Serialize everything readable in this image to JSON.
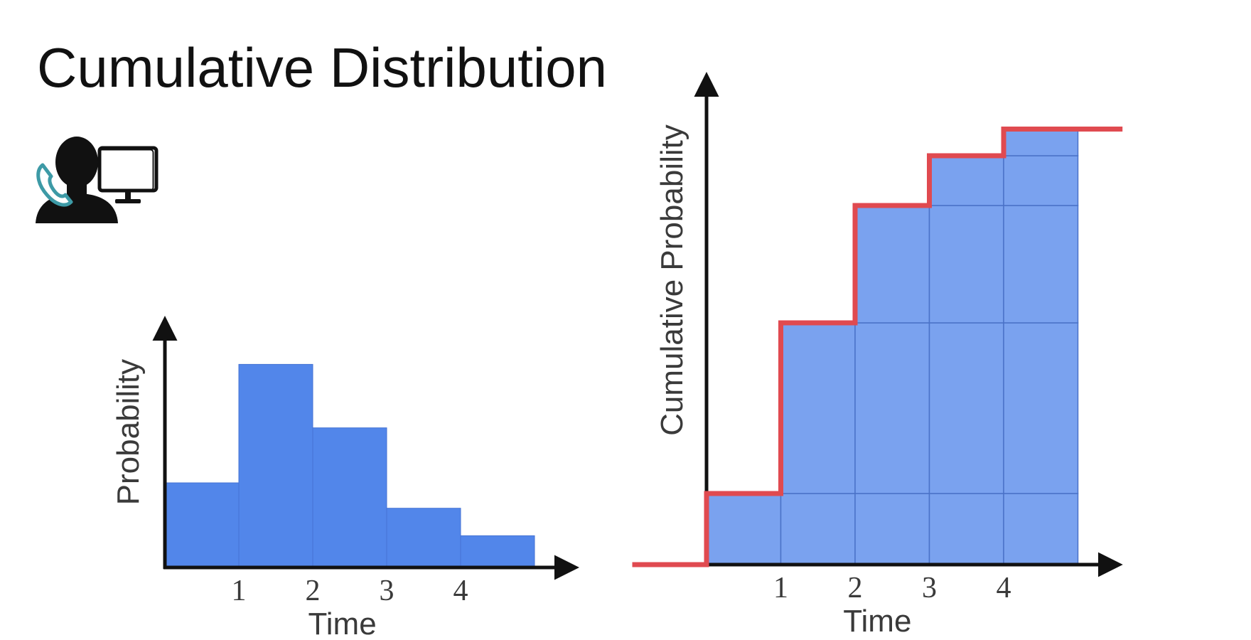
{
  "page": {
    "title": "Cumulative Distribution",
    "icon": "person-phone-computer-icon"
  },
  "colors": {
    "bar": "#5286ea",
    "cumulative_fill": "#7aa2ef",
    "cell_border": "#4a72c8",
    "step_line": "#e04a50",
    "axis": "#111111"
  },
  "chart_data": [
    {
      "type": "bar",
      "name": "probability-histogram",
      "x_bins": [
        [
          0,
          1
        ],
        [
          1,
          2
        ],
        [
          2,
          3
        ],
        [
          3,
          4
        ],
        [
          4,
          5
        ]
      ],
      "values": [
        0.2,
        0.48,
        0.33,
        0.14,
        0.075
      ],
      "xticks": [
        "1",
        "2",
        "3",
        "4"
      ],
      "xtick_values": [
        1,
        2,
        3,
        4
      ],
      "xlabel": "Time",
      "ylabel": "Probability",
      "xlim": [
        0,
        5.5
      ],
      "ylim": [
        0,
        0.6
      ],
      "grid": false
    },
    {
      "type": "bar",
      "name": "cumulative-histogram",
      "stacked": true,
      "x_bins": [
        [
          0,
          1
        ],
        [
          1,
          2
        ],
        [
          2,
          3
        ],
        [
          3,
          4
        ],
        [
          4,
          5
        ]
      ],
      "segments": [
        0.2,
        0.48,
        0.33,
        0.14,
        0.075
      ],
      "cumulative_values": [
        0.2,
        0.68,
        1.01,
        1.15,
        1.225
      ],
      "step_line": {
        "x_start": -1,
        "x_end": 5.6
      },
      "xticks": [
        "1",
        "2",
        "3",
        "4"
      ],
      "xtick_values": [
        1,
        2,
        3,
        4
      ],
      "xlabel": "Time",
      "ylabel": "Cumulative Probability",
      "xlim": [
        0,
        5.5
      ],
      "ylim": [
        0,
        1.38
      ],
      "grid": false
    }
  ]
}
